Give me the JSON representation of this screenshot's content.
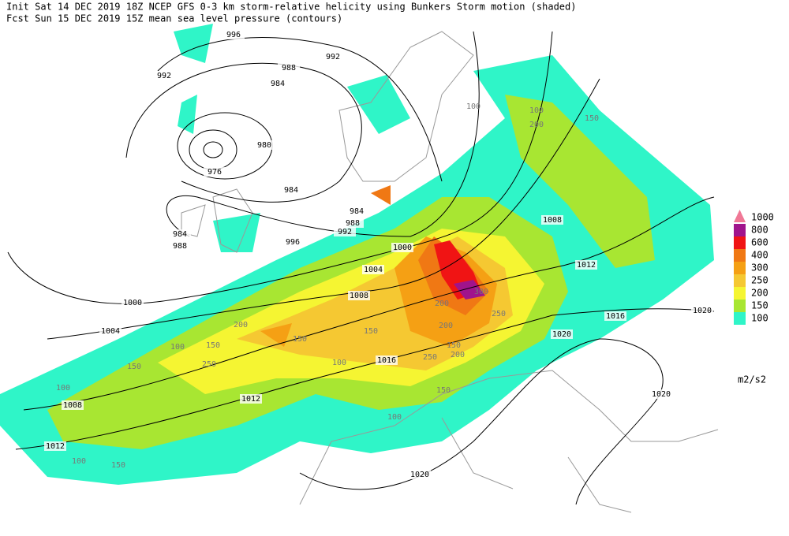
{
  "header": {
    "line1": "Init  Sat 14 DEC 2019 18Z  NCEP GFS 0-3 km storm-relative helicity using Bunkers Storm motion (shaded)",
    "line2": "Fcst Sun 15 DEC 2019 15Z  mean sea level pressure (contours)"
  },
  "legend": {
    "levels": [
      1000,
      800,
      600,
      400,
      300,
      250,
      200,
      150,
      100
    ],
    "colors": [
      "#f07896",
      "#a0148c",
      "#f01414",
      "#f07814",
      "#f5a014",
      "#f5c832",
      "#f5f532",
      "#a8e632",
      "#2ff5c8"
    ],
    "unit": "m2/s2"
  },
  "contour_labels": [
    996,
    992,
    992,
    988,
    984,
    980,
    976,
    984,
    984,
    984,
    988,
    988,
    992,
    996,
    1000,
    1004,
    1000,
    1008,
    1004,
    1008,
    1012,
    1016,
    1020,
    1020,
    1016,
    1012,
    1008,
    1012,
    1020,
    1020
  ],
  "field_labels": [
    100,
    150,
    100,
    150,
    200,
    150,
    100,
    150,
    250,
    200,
    300,
    250,
    200,
    150,
    100,
    150,
    200,
    250,
    150,
    100,
    100,
    150,
    200,
    100
  ]
}
